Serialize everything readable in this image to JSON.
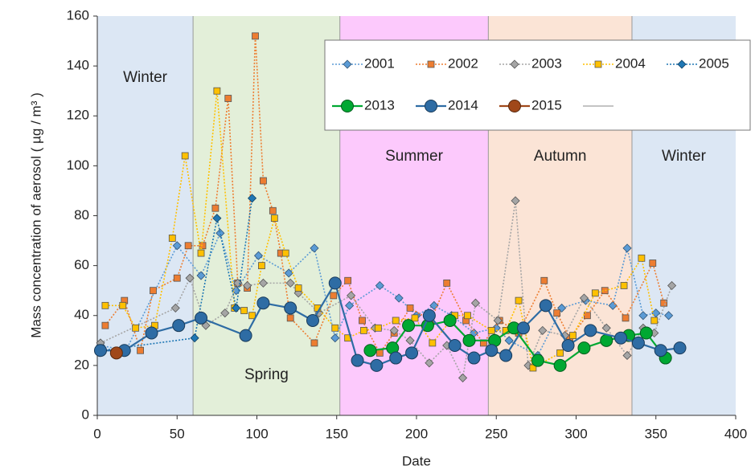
{
  "chart_data": {
    "type": "line",
    "x_label": "Date",
    "y_label": "Mass concentration  of aerosol ( µg / m³ )",
    "xlim": [
      0,
      400
    ],
    "xticks": [
      0,
      50,
      100,
      150,
      200,
      250,
      300,
      350,
      400
    ],
    "ylim": [
      0,
      160
    ],
    "yticks": [
      0,
      20,
      40,
      60,
      80,
      100,
      120,
      140,
      160
    ],
    "grid": false,
    "bands": [
      {
        "label": "Winter",
        "start": 0,
        "end": 60,
        "color": "#dce7f4"
      },
      {
        "label": "Spring",
        "start": 60,
        "end": 152,
        "color": "#e3efd9"
      },
      {
        "label": "Summer",
        "start": 152,
        "end": 245,
        "color": "#fcc9fc"
      },
      {
        "label": "Autumn",
        "start": 245,
        "end": 335,
        "color": "#fbe4d6"
      },
      {
        "label": "Winter",
        "start": 335,
        "end": 400,
        "color": "#dce7f4"
      }
    ],
    "series": [
      {
        "name": "2001",
        "color": "#5b9bd5",
        "marker": "diamond",
        "dash": "dotted",
        "x": [
          2,
          18,
          50,
          65,
          77,
          87,
          101,
          120,
          136,
          149,
          158,
          177,
          189,
          200,
          211,
          222,
          236,
          250,
          258,
          276,
          291,
          306,
          323,
          332,
          342,
          350,
          358
        ],
        "values": [
          28,
          26,
          68,
          56,
          73,
          50,
          64,
          57,
          67,
          31,
          44,
          52,
          47,
          40,
          44,
          40,
          33,
          35,
          30,
          24,
          43,
          46,
          44,
          67,
          40,
          41,
          40
        ]
      },
      {
        "name": "2002",
        "color": "#ed7d31",
        "marker": "square",
        "dash": "dotted",
        "x": [
          5,
          17,
          27,
          35,
          50,
          57,
          66,
          74,
          82,
          88,
          94,
          99,
          104,
          110,
          115,
          121,
          136,
          148,
          157,
          166,
          177,
          186,
          196,
          209,
          219,
          231,
          242,
          252,
          264,
          280,
          288,
          296,
          307,
          318,
          331,
          348,
          355
        ],
        "values": [
          36,
          46,
          26,
          50,
          55,
          68,
          68,
          83,
          127,
          53,
          51,
          152,
          94,
          82,
          65,
          39,
          29,
          48,
          54,
          38,
          25,
          33,
          43,
          38,
          53,
          38,
          29,
          38,
          33,
          54,
          41,
          31,
          40,
          50,
          39,
          61,
          45
        ]
      },
      {
        "name": "2003",
        "color": "#a5a5a5",
        "marker": "diamond",
        "dash": "dotted",
        "x": [
          2,
          49,
          58,
          68,
          80,
          88,
          94,
          104,
          121,
          126,
          139,
          159,
          174,
          186,
          196,
          208,
          219,
          229,
          237,
          251,
          262,
          270,
          279,
          293,
          305,
          319,
          332,
          342,
          349,
          360
        ],
        "values": [
          29,
          43,
          55,
          36,
          41,
          53,
          52,
          53,
          53,
          49,
          41,
          48,
          35,
          34,
          30,
          21,
          28,
          15,
          45,
          38,
          86,
          20,
          34,
          32,
          47,
          35,
          24,
          35,
          33,
          52
        ]
      },
      {
        "name": "2004",
        "color": "#ffc000",
        "marker": "square",
        "dash": "dotted",
        "x": [
          5,
          16,
          24,
          36,
          47,
          55,
          65,
          75,
          86,
          92,
          97,
          103,
          111,
          118,
          126,
          138,
          149,
          157,
          167,
          176,
          187,
          199,
          210,
          224,
          232,
          247,
          256,
          264,
          273,
          290,
          298,
          312,
          330,
          341,
          349
        ],
        "values": [
          44,
          44,
          35,
          36,
          71,
          104,
          65,
          130,
          43,
          42,
          40,
          60,
          79,
          65,
          51,
          43,
          35,
          31,
          34,
          35,
          38,
          39,
          29,
          40,
          40,
          34,
          34,
          46,
          19,
          25,
          32,
          49,
          52,
          63,
          38
        ]
      },
      {
        "name": "2005",
        "color": "#1f77b4",
        "marker": "diamond",
        "dash": "dotted",
        "x": [
          3,
          61,
          75,
          87,
          97
        ],
        "values": [
          26,
          31,
          79,
          43,
          87
        ]
      },
      {
        "name": "2013",
        "color": "#00a832",
        "marker": "circle",
        "dash": "solid",
        "x": [
          171,
          185,
          195,
          207,
          221,
          233,
          249,
          261,
          276,
          290,
          305,
          319,
          333,
          344,
          356
        ],
        "values": [
          26,
          27,
          36,
          36,
          38,
          30,
          30,
          35,
          22,
          20,
          27,
          30,
          32,
          33,
          23
        ]
      },
      {
        "name": "2014",
        "color": "#2e6ca4",
        "marker": "circle",
        "dash": "solid",
        "x": [
          2,
          17,
          34,
          51,
          65,
          93,
          104,
          121,
          135,
          149,
          163,
          175,
          187,
          197,
          208,
          224,
          236,
          247,
          256,
          267,
          281,
          295,
          309,
          328,
          339,
          353,
          365
        ],
        "values": [
          26,
          26,
          33,
          36,
          39,
          32,
          45,
          43,
          38,
          53,
          22,
          20,
          23,
          25,
          40,
          28,
          23,
          26,
          24,
          35,
          44,
          28,
          34,
          31,
          29,
          26,
          27
        ]
      },
      {
        "name": "2015",
        "color": "#a0481a",
        "marker": "circle",
        "dash": "solid",
        "x": [
          12
        ],
        "values": [
          25
        ]
      }
    ]
  }
}
